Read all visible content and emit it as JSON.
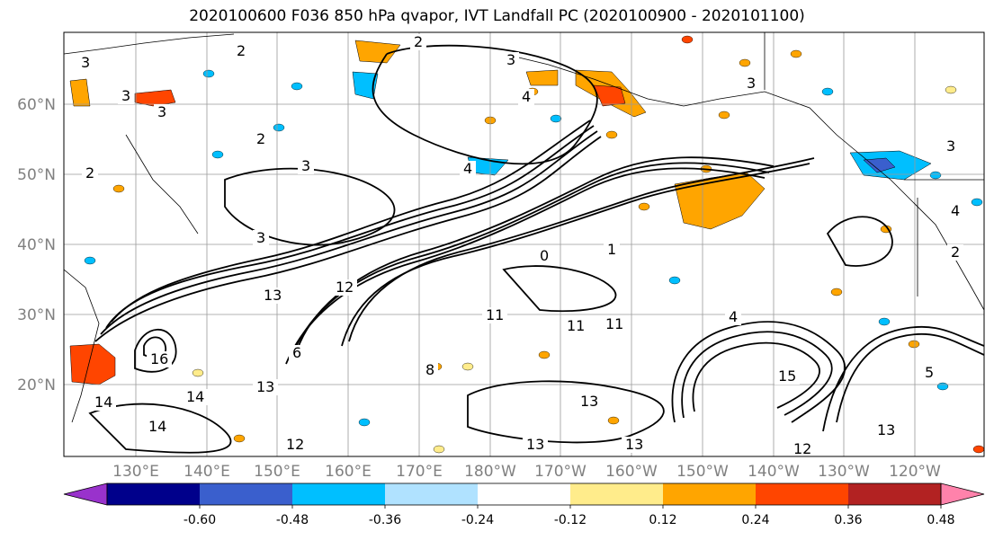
{
  "title": "2020100600 F036 850 hPa qvapor, IVT Landfall PC (2020100900 - 2020101100)",
  "lat_labels": [
    "60°N",
    "50°N",
    "40°N",
    "30°N",
    "20°N"
  ],
  "lon_labels": [
    "130°E",
    "140°E",
    "150°E",
    "160°E",
    "170°E",
    "180°W",
    "170°W",
    "160°W",
    "150°W",
    "140°W",
    "130°W",
    "120°W"
  ],
  "colorbar": {
    "colors": [
      "#9932cc",
      "#00008b",
      "#3a5fcd",
      "#00bfff",
      "#b0e2ff",
      "#ffffff",
      "#ffec8b",
      "#ffa500",
      "#ff4500",
      "#b22222",
      "#ff82ab"
    ],
    "tick_labels": [
      "-0.60",
      "-0.48",
      "-0.36",
      "-0.24",
      "-0.12",
      "0.12",
      "0.24",
      "0.36",
      "0.48",
      "0.60"
    ]
  },
  "contour_labels": [
    {
      "text": "2"
    },
    {
      "text": "2"
    },
    {
      "text": "3"
    },
    {
      "text": "3"
    },
    {
      "text": "4"
    },
    {
      "text": "3"
    },
    {
      "text": "3"
    },
    {
      "text": "3"
    },
    {
      "text": "2"
    },
    {
      "text": "3"
    },
    {
      "text": "4"
    },
    {
      "text": "3"
    },
    {
      "text": "2"
    },
    {
      "text": "0"
    },
    {
      "text": "1"
    },
    {
      "text": "13"
    },
    {
      "text": "12"
    },
    {
      "text": "11"
    },
    {
      "text": "11"
    },
    {
      "text": "11"
    },
    {
      "text": "6"
    },
    {
      "text": "8"
    },
    {
      "text": "16"
    },
    {
      "text": "13"
    },
    {
      "text": "14"
    },
    {
      "text": "14"
    },
    {
      "text": "14"
    },
    {
      "text": "12"
    },
    {
      "text": "13"
    },
    {
      "text": "13"
    },
    {
      "text": "12"
    },
    {
      "text": "13"
    },
    {
      "text": "5"
    },
    {
      "text": "4"
    },
    {
      "text": "13"
    },
    {
      "text": "15"
    },
    {
      "text": "3"
    },
    {
      "text": "2"
    },
    {
      "text": "4"
    }
  ],
  "anomaly_patches": [
    {
      "color": "#ff4500"
    },
    {
      "color": "#ffa500"
    },
    {
      "color": "#ffa500"
    },
    {
      "color": "#ff4500"
    },
    {
      "color": "#ffa500"
    },
    {
      "color": "#00bfff"
    },
    {
      "color": "#3a5fcd"
    },
    {
      "color": "#00bfff"
    },
    {
      "color": "#ffa500"
    },
    {
      "color": "#00bfff"
    },
    {
      "color": "#ffa500"
    },
    {
      "color": "#ff4500"
    }
  ]
}
